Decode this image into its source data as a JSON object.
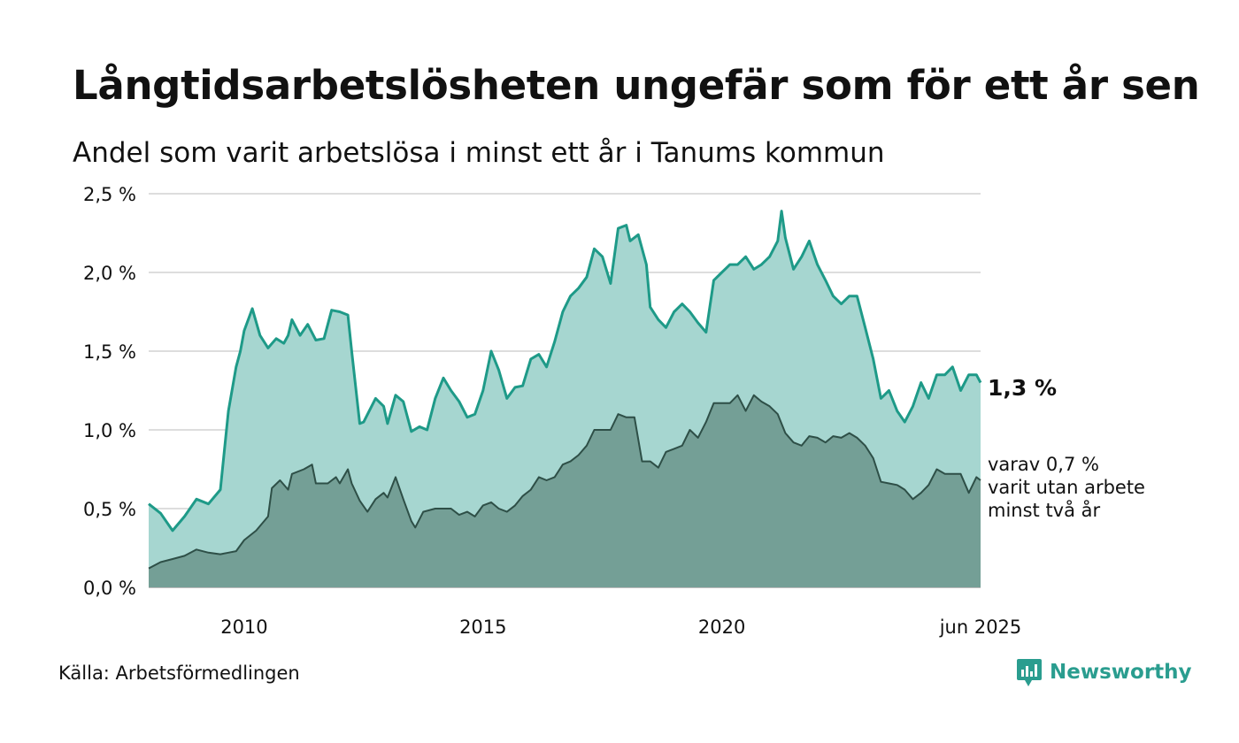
{
  "title": "Långtidsarbetslösheten ungefär som för ett år sen",
  "subtitle": "Andel som varit arbetslösa i minst ett år i Tanums kommun",
  "source": "Källa: Arbetsförmedlingen",
  "brand": "Newsworthy",
  "colors": {
    "series1_line": "#1e9a88",
    "series1_fill": "#a6d6d0",
    "series2_line": "#2e4f47",
    "series2_fill": "#749f96",
    "grid": "#dddddd",
    "brand": "#2a9d8f"
  },
  "chart_data": {
    "type": "area",
    "x_tick_labels": [
      "2010",
      "2015",
      "2020",
      "jun 2025"
    ],
    "x_tick_values": [
      2010,
      2015,
      2020,
      2025.417
    ],
    "xlim": [
      2008.0,
      2025.417
    ],
    "y_tick_labels": [
      "0,0 %",
      "0,5 %",
      "1,0 %",
      "1,5 %",
      "2,0 %",
      "2,5 %"
    ],
    "y_tick_values": [
      0,
      0.5,
      1.0,
      1.5,
      2.0,
      2.5
    ],
    "ylim": [
      0,
      2.5
    ],
    "grid": "horizontal",
    "end_label_1": "1,3 %",
    "end_label_2_lines": [
      "varav 0,7 %",
      "varit utan arbete",
      "minst två år"
    ],
    "series": [
      {
        "name": "",
        "x": [
          2008.0,
          2008.25,
          2008.5,
          2008.75,
          2009.0,
          2009.25,
          2009.5,
          2009.67,
          2009.83,
          2009.92,
          2010.0,
          2010.17,
          2010.33,
          2010.5,
          2010.67,
          2010.83,
          2010.92,
          2011.0,
          2011.17,
          2011.33,
          2011.5,
          2011.67,
          2011.83,
          2012.0,
          2012.17,
          2012.25,
          2012.42,
          2012.5,
          2012.75,
          2012.92,
          2013.0,
          2013.17,
          2013.33,
          2013.5,
          2013.67,
          2013.83,
          2014.0,
          2014.17,
          2014.33,
          2014.5,
          2014.67,
          2014.83,
          2015.0,
          2015.17,
          2015.33,
          2015.5,
          2015.67,
          2015.83,
          2016.0,
          2016.17,
          2016.33,
          2016.5,
          2016.67,
          2016.83,
          2017.0,
          2017.17,
          2017.33,
          2017.5,
          2017.67,
          2017.83,
          2018.0,
          2018.08,
          2018.25,
          2018.42,
          2018.5,
          2018.67,
          2018.83,
          2019.0,
          2019.17,
          2019.33,
          2019.5,
          2019.67,
          2019.83,
          2020.0,
          2020.17,
          2020.33,
          2020.5,
          2020.67,
          2020.83,
          2021.0,
          2021.17,
          2021.25,
          2021.33,
          2021.5,
          2021.67,
          2021.83,
          2022.0,
          2022.17,
          2022.33,
          2022.5,
          2022.67,
          2022.83,
          2023.0,
          2023.17,
          2023.33,
          2023.5,
          2023.67,
          2023.83,
          2024.0,
          2024.17,
          2024.33,
          2024.5,
          2024.67,
          2024.83,
          2025.0,
          2025.17,
          2025.33,
          2025.417
        ],
        "values": [
          0.53,
          0.47,
          0.36,
          0.45,
          0.56,
          0.53,
          0.62,
          1.12,
          1.4,
          1.5,
          1.63,
          1.77,
          1.6,
          1.52,
          1.58,
          1.55,
          1.6,
          1.7,
          1.6,
          1.67,
          1.57,
          1.58,
          1.76,
          1.75,
          1.73,
          1.5,
          1.04,
          1.05,
          1.2,
          1.15,
          1.04,
          1.22,
          1.18,
          0.99,
          1.02,
          1.0,
          1.2,
          1.33,
          1.25,
          1.18,
          1.08,
          1.1,
          1.25,
          1.5,
          1.38,
          1.2,
          1.27,
          1.28,
          1.45,
          1.48,
          1.4,
          1.56,
          1.75,
          1.85,
          1.9,
          1.97,
          2.15,
          2.1,
          1.93,
          2.28,
          2.3,
          2.2,
          2.24,
          2.05,
          1.78,
          1.7,
          1.65,
          1.75,
          1.8,
          1.75,
          1.68,
          1.62,
          1.95,
          2.0,
          2.05,
          2.05,
          2.1,
          2.02,
          2.05,
          2.1,
          2.2,
          2.39,
          2.22,
          2.02,
          2.1,
          2.2,
          2.05,
          1.95,
          1.85,
          1.8,
          1.85,
          1.85,
          1.65,
          1.45,
          1.2,
          1.25,
          1.12,
          1.05,
          1.15,
          1.3,
          1.2,
          1.35,
          1.35,
          1.4,
          1.25,
          1.35,
          1.35,
          1.3
        ]
      },
      {
        "name": "",
        "x": [
          2008.0,
          2008.25,
          2008.5,
          2008.75,
          2009.0,
          2009.25,
          2009.5,
          2009.67,
          2009.83,
          2010.0,
          2010.25,
          2010.5,
          2010.58,
          2010.75,
          2010.92,
          2011.0,
          2011.25,
          2011.42,
          2011.5,
          2011.75,
          2011.92,
          2012.0,
          2012.17,
          2012.25,
          2012.42,
          2012.58,
          2012.75,
          2012.92,
          2013.0,
          2013.17,
          2013.33,
          2013.5,
          2013.58,
          2013.75,
          2014.0,
          2014.17,
          2014.33,
          2014.5,
          2014.67,
          2014.83,
          2015.0,
          2015.17,
          2015.33,
          2015.5,
          2015.67,
          2015.83,
          2016.0,
          2016.17,
          2016.33,
          2016.5,
          2016.67,
          2016.83,
          2017.0,
          2017.17,
          2017.33,
          2017.5,
          2017.67,
          2017.83,
          2018.0,
          2018.17,
          2018.33,
          2018.5,
          2018.67,
          2018.83,
          2019.0,
          2019.17,
          2019.33,
          2019.5,
          2019.67,
          2019.83,
          2020.0,
          2020.17,
          2020.33,
          2020.5,
          2020.67,
          2020.83,
          2021.0,
          2021.17,
          2021.33,
          2021.5,
          2021.67,
          2021.83,
          2022.0,
          2022.17,
          2022.33,
          2022.5,
          2022.67,
          2022.83,
          2023.0,
          2023.17,
          2023.33,
          2023.5,
          2023.67,
          2023.83,
          2024.0,
          2024.17,
          2024.33,
          2024.5,
          2024.67,
          2024.83,
          2025.0,
          2025.17,
          2025.33,
          2025.417
        ],
        "values": [
          0.12,
          0.16,
          0.18,
          0.2,
          0.24,
          0.22,
          0.21,
          0.22,
          0.23,
          0.3,
          0.36,
          0.45,
          0.63,
          0.68,
          0.62,
          0.72,
          0.75,
          0.78,
          0.66,
          0.66,
          0.7,
          0.66,
          0.75,
          0.66,
          0.55,
          0.48,
          0.56,
          0.6,
          0.57,
          0.7,
          0.56,
          0.42,
          0.38,
          0.48,
          0.5,
          0.5,
          0.5,
          0.46,
          0.48,
          0.45,
          0.52,
          0.54,
          0.5,
          0.48,
          0.52,
          0.58,
          0.62,
          0.7,
          0.68,
          0.7,
          0.78,
          0.8,
          0.84,
          0.9,
          1.0,
          1.0,
          1.0,
          1.1,
          1.08,
          1.08,
          0.8,
          0.8,
          0.76,
          0.86,
          0.88,
          0.9,
          1.0,
          0.95,
          1.05,
          1.17,
          1.17,
          1.17,
          1.22,
          1.12,
          1.22,
          1.18,
          1.15,
          1.1,
          0.98,
          0.92,
          0.9,
          0.96,
          0.95,
          0.92,
          0.96,
          0.95,
          0.98,
          0.95,
          0.9,
          0.82,
          0.67,
          0.66,
          0.65,
          0.62,
          0.56,
          0.6,
          0.65,
          0.75,
          0.72,
          0.72,
          0.72,
          0.6,
          0.7,
          0.68
        ]
      }
    ]
  }
}
